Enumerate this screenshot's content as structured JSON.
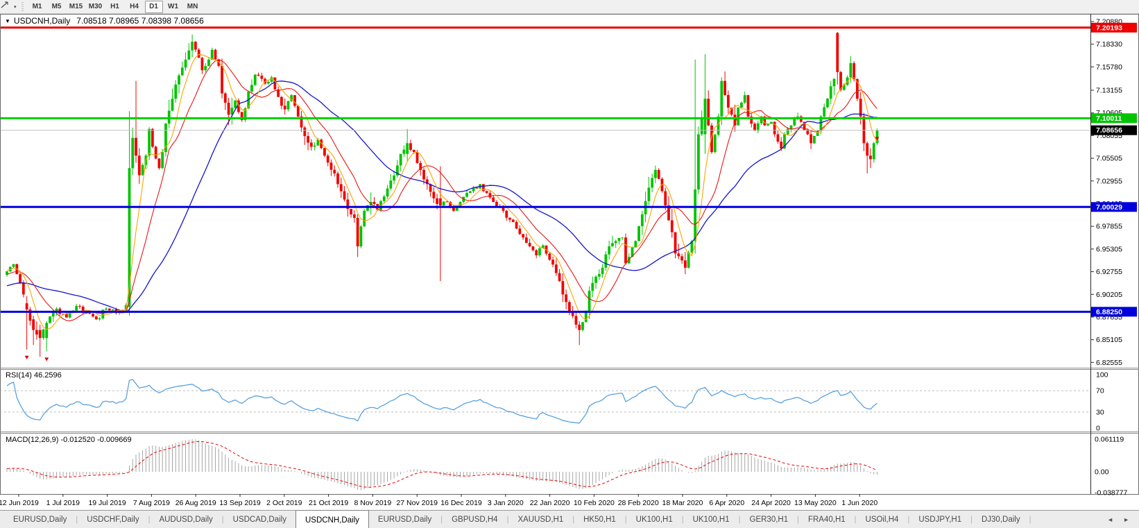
{
  "window": {
    "collapse_icon": "▼",
    "title_symbol": "USDCNH,Daily",
    "title_ohlc": "7.08518 7.08965 7.08398 7.08656"
  },
  "toolbar": {
    "timeframes": [
      "M1",
      "M5",
      "M15",
      "M30",
      "H1",
      "H4",
      "D1",
      "W1",
      "MN"
    ],
    "active_timeframe": "D1",
    "line_tool_icon": "line-studies-icon",
    "dropdown_icon": "▾"
  },
  "indicators": {
    "rsi_label": "RSI(14) 46.2596",
    "macd_label": "MACD(12,26,9) -0.012520 -0.009669"
  },
  "axes": {
    "price_ticks": [
      "7.20880",
      "7.18330",
      "7.15780",
      "7.13155",
      "7.10605",
      "7.08055",
      "7.05505",
      "7.02955",
      "7.00405",
      "6.97855",
      "6.95305",
      "6.92755",
      "6.90205",
      "6.87655",
      "6.85105",
      "6.82555"
    ],
    "rsi_ticks": [
      {
        "label": "100",
        "value": 100
      },
      {
        "label": "70",
        "value": 70
      },
      {
        "label": "30",
        "value": 30
      },
      {
        "label": "0",
        "value": 0
      }
    ],
    "macd_ticks": [
      {
        "label": "0.061119",
        "value": 0.061119
      },
      {
        "label": "0.00",
        "value": 0
      },
      {
        "label": "-0.038777",
        "value": -0.038777
      }
    ],
    "date_ticks": [
      "12 Jun 2019",
      "1 Jul 2019",
      "19 Jul 2019",
      "7 Aug 2019",
      "26 Aug 2019",
      "13 Sep 2019",
      "2 Oct 2019",
      "21 Oct 2019",
      "8 Nov 2019",
      "27 Nov 2019",
      "16 Dec 2019",
      "3 Jan 2020",
      "22 Jan 2020",
      "10 Feb 2020",
      "28 Feb 2020",
      "18 Mar 2020",
      "6 Apr 2020",
      "24 Apr 2020",
      "13 May 2020",
      "1 Jun 2020"
    ]
  },
  "price_badges": [
    {
      "value": "7.20193",
      "price": 7.20193,
      "color": "#ee0000"
    },
    {
      "value": "7.10011",
      "price": 7.10011,
      "color": "#00c400"
    },
    {
      "value": "7.08656",
      "price": 7.08656,
      "color": "#000000"
    },
    {
      "value": "7.00029",
      "price": 7.00029,
      "color": "#0000dd"
    },
    {
      "value": "6.88250",
      "price": 6.8825,
      "color": "#0000dd"
    }
  ],
  "tabs": {
    "items": [
      "EURUSD,Daily",
      "USDCHF,Daily",
      "AUDUSD,Daily",
      "USDCAD,Daily",
      "USDCNH,Daily",
      "EURUSD,Daily",
      "GBPUSD,H4",
      "XAUUSD,H1",
      "HK50,H1",
      "UK100,H1",
      "UK100,H1",
      "GER30,H1",
      "FRA40,H1",
      "USOil,H4",
      "USDJPY,H1",
      "DJ30,Daily"
    ],
    "active_index": 4,
    "scroll_left": "◄",
    "scroll_right": "►"
  },
  "colors": {
    "bull": "#00c400",
    "bear": "#f00400",
    "ma_fast": "#ffa200",
    "ma_mid": "#e81414",
    "ma_slow": "#1414cc",
    "rsi_line": "#4a9ae0",
    "rsi_dash": "#bcbcbc",
    "macd_hist": "#a4a4a4",
    "macd_signal": "#ee0000",
    "line_red": "#ee0000",
    "line_green": "#00d200",
    "line_blue": "#0000e0",
    "current_price_line": "#c0c0c0",
    "border": "#6a6a6a",
    "axis_text": "#000000"
  },
  "chart_data": {
    "type": "candlestick",
    "symbol": "USDCNH",
    "timeframe": "Daily",
    "ohlc_display": {
      "open": "7.08518",
      "high": "7.08965",
      "low": "7.08398",
      "close": "7.08656"
    },
    "current_price": 7.08656,
    "price_axis_range": [
      6.8196,
      7.2174
    ],
    "candle_count": 264,
    "close_anchors": [
      [
        0,
        6.928
      ],
      [
        2,
        6.936
      ],
      [
        4,
        6.915
      ],
      [
        6,
        6.885
      ],
      [
        8,
        6.862
      ],
      [
        10,
        6.853
      ],
      [
        12,
        6.87
      ],
      [
        15,
        6.886
      ],
      [
        18,
        6.876
      ],
      [
        21,
        6.889
      ],
      [
        24,
        6.881
      ],
      [
        27,
        6.874
      ],
      [
        30,
        6.886
      ],
      [
        33,
        6.881
      ],
      [
        35,
        6.884
      ],
      [
        36,
        6.89
      ],
      [
        37,
        7.044
      ],
      [
        38,
        7.078
      ],
      [
        39,
        7.058
      ],
      [
        40,
        7.036
      ],
      [
        42,
        7.058
      ],
      [
        43,
        7.088
      ],
      [
        44,
        7.068
      ],
      [
        46,
        7.044
      ],
      [
        47,
        7.062
      ],
      [
        48,
        7.094
      ],
      [
        50,
        7.122
      ],
      [
        51,
        7.138
      ],
      [
        53,
        7.157
      ],
      [
        54,
        7.166
      ],
      [
        56,
        7.186
      ],
      [
        58,
        7.168
      ],
      [
        59,
        7.154
      ],
      [
        61,
        7.166
      ],
      [
        62,
        7.177
      ],
      [
        64,
        7.159
      ],
      [
        65,
        7.128
      ],
      [
        67,
        7.104
      ],
      [
        69,
        7.12
      ],
      [
        71,
        7.098
      ],
      [
        73,
        7.13
      ],
      [
        75,
        7.149
      ],
      [
        78,
        7.139
      ],
      [
        80,
        7.146
      ],
      [
        82,
        7.124
      ],
      [
        84,
        7.11
      ],
      [
        86,
        7.126
      ],
      [
        88,
        7.102
      ],
      [
        90,
        7.08
      ],
      [
        92,
        7.068
      ],
      [
        94,
        7.076
      ],
      [
        96,
        7.058
      ],
      [
        99,
        7.038
      ],
      [
        101,
        7.018
      ],
      [
        103,
        6.998
      ],
      [
        105,
        6.988
      ],
      [
        106,
        6.956
      ],
      [
        108,
        6.996
      ],
      [
        110,
        7.006
      ],
      [
        112,
        6.997
      ],
      [
        114,
        7.012
      ],
      [
        116,
        7.03
      ],
      [
        118,
        7.047
      ],
      [
        119,
        7.06
      ],
      [
        121,
        7.072
      ],
      [
        123,
        7.062
      ],
      [
        125,
        7.042
      ],
      [
        127,
        7.026
      ],
      [
        129,
        7.01
      ],
      [
        131,
        7.002
      ],
      [
        133,
        7.006
      ],
      [
        135,
        6.996
      ],
      [
        137,
        7.006
      ],
      [
        139,
        7.016
      ],
      [
        141,
        7.022
      ],
      [
        143,
        7.026
      ],
      [
        145,
        7.016
      ],
      [
        147,
        7.006
      ],
      [
        150,
        6.996
      ],
      [
        152,
        6.986
      ],
      [
        154,
        6.976
      ],
      [
        156,
        6.966
      ],
      [
        158,
        6.956
      ],
      [
        160,
        6.946
      ],
      [
        162,
        6.957
      ],
      [
        164,
        6.941
      ],
      [
        166,
        6.926
      ],
      [
        168,
        6.902
      ],
      [
        170,
        6.882
      ],
      [
        172,
        6.868
      ],
      [
        173,
        6.862
      ],
      [
        175,
        6.882
      ],
      [
        176,
        6.906
      ],
      [
        178,
        6.922
      ],
      [
        180,
        6.932
      ],
      [
        182,
        6.956
      ],
      [
        184,
        6.962
      ],
      [
        186,
        6.966
      ],
      [
        187,
        6.937
      ],
      [
        190,
        6.962
      ],
      [
        192,
        6.992
      ],
      [
        194,
        7.022
      ],
      [
        196,
        7.042
      ],
      [
        197,
        7.032
      ],
      [
        199,
        7.002
      ],
      [
        201,
        6.972
      ],
      [
        202,
        6.948
      ],
      [
        205,
        6.932
      ],
      [
        207,
        6.962
      ],
      [
        208,
        7.02
      ],
      [
        209,
        7.082
      ],
      [
        211,
        7.122
      ],
      [
        212,
        7.092
      ],
      [
        213,
        7.062
      ],
      [
        215,
        7.102
      ],
      [
        216,
        7.142
      ],
      [
        218,
        7.112
      ],
      [
        220,
        7.092
      ],
      [
        221,
        7.112
      ],
      [
        223,
        7.126
      ],
      [
        224,
        7.102
      ],
      [
        226,
        7.086
      ],
      [
        228,
        7.102
      ],
      [
        229,
        7.092
      ],
      [
        231,
        7.096
      ],
      [
        232,
        7.082
      ],
      [
        234,
        7.066
      ],
      [
        235,
        7.082
      ],
      [
        237,
        7.092
      ],
      [
        239,
        7.102
      ],
      [
        240,
        7.096
      ],
      [
        242,
        7.082
      ],
      [
        243,
        7.072
      ],
      [
        245,
        7.086
      ],
      [
        246,
        7.102
      ],
      [
        248,
        7.122
      ],
      [
        249,
        7.136
      ],
      [
        251,
        7.152
      ],
      [
        252,
        7.132
      ],
      [
        254,
        7.146
      ],
      [
        255,
        7.162
      ],
      [
        257,
        7.122
      ],
      [
        258,
        7.102
      ],
      [
        259,
        7.072
      ],
      [
        260,
        7.058
      ],
      [
        261,
        7.054
      ],
      [
        262,
        7.072
      ],
      [
        263,
        7.0866
      ]
    ],
    "special_candles": [
      [
        6,
        6.892,
        6.9,
        6.84,
        6.885
      ],
      [
        8,
        6.874,
        6.878,
        6.845,
        6.862
      ],
      [
        10,
        6.862,
        6.868,
        6.832,
        6.853
      ],
      [
        12,
        6.853,
        6.872,
        6.838,
        6.87
      ],
      [
        37,
        6.888,
        7.108,
        6.878,
        7.044
      ],
      [
        39,
        7.078,
        7.142,
        7.05,
        7.058
      ],
      [
        106,
        6.988,
        6.992,
        6.944,
        6.956
      ],
      [
        121,
        7.06,
        7.088,
        7.052,
        7.072
      ],
      [
        131,
        7.01,
        7.046,
        6.917,
        7.002
      ],
      [
        173,
        6.868,
        6.872,
        6.845,
        6.862
      ],
      [
        208,
        6.962,
        7.166,
        6.948,
        7.02
      ],
      [
        211,
        7.082,
        7.172,
        7.06,
        7.122
      ],
      [
        251,
        7.196,
        7.197,
        7.138,
        7.152
      ],
      [
        255,
        7.146,
        7.17,
        7.14,
        7.162
      ],
      [
        260,
        7.072,
        7.074,
        7.038,
        7.058
      ]
    ],
    "moving_averages": [
      {
        "period": 6,
        "color_key": "ma_fast"
      },
      {
        "period": 13,
        "color_key": "ma_mid"
      },
      {
        "period": 34,
        "color_key": "ma_slow"
      }
    ],
    "horizontal_lines": [
      {
        "price": 7.20193,
        "color_key": "line_red",
        "width": 3,
        "end_square": false
      },
      {
        "price": 7.10011,
        "color_key": "line_green",
        "width": 3,
        "end_square": true
      },
      {
        "price": 7.00029,
        "color_key": "line_blue",
        "width": 3,
        "end_square": true
      },
      {
        "price": 6.8825,
        "color_key": "line_blue",
        "width": 3,
        "end_square": false
      }
    ],
    "current_price_level": {
      "price": 7.08656,
      "width": 1
    },
    "arrow_markers": [
      {
        "index": 6,
        "price": 6.833,
        "dir": "down"
      },
      {
        "index": 12,
        "price": 6.831,
        "dir": "down"
      },
      {
        "index": 263,
        "price": 7.079,
        "dir": "down"
      }
    ],
    "rsi": {
      "period": 14,
      "value": 46.2596,
      "levels": [
        70,
        30
      ],
      "range": [
        0,
        100
      ]
    },
    "macd": {
      "fast": 12,
      "slow": 26,
      "signal": 9,
      "value": -0.01252,
      "signal_value": -0.009669,
      "axis_max": 0.061119,
      "axis_min": -0.038777
    }
  }
}
